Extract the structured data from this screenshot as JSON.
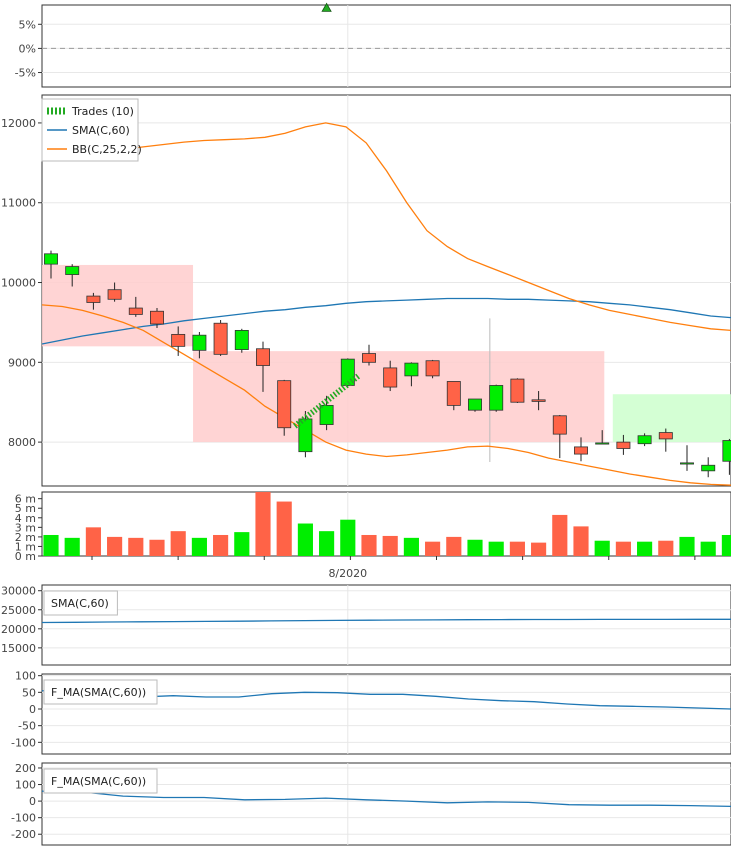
{
  "chart_data": [
    {
      "type": "line",
      "panel": "trade-returns",
      "y_ticks": [
        "5%",
        "0%",
        "-5%"
      ],
      "ylim": [
        -8,
        9
      ],
      "marker_index": 13,
      "marker_value": 8.5,
      "marker_color": "#22aa22"
    },
    {
      "type": "candlestick",
      "panel": "price",
      "y_ticks": [
        12000,
        11000,
        10000,
        9000,
        8000
      ],
      "ylim": [
        7450,
        12350
      ],
      "legend": {
        "placement": "top-left",
        "items": [
          {
            "label": "Trades (10)",
            "color": "#22aa22",
            "style": "hatched"
          },
          {
            "label": "SMA(C,60)",
            "color": "#1f77b4",
            "style": "line"
          },
          {
            "label": "BB(C,25,2,2)",
            "color": "#ff7f0e",
            "style": "line"
          }
        ]
      },
      "colors": {
        "up": "#00ee00",
        "down": "#ff6347",
        "sma": "#1f77b4",
        "bb": "#ff7f0e",
        "zone_loss": "#ffcccc",
        "zone_win": "#ccffcc"
      },
      "candles": [
        {
          "o": 10230,
          "h": 10400,
          "l": 10050,
          "c": 10360
        },
        {
          "o": 10100,
          "h": 10230,
          "l": 9950,
          "c": 10200
        },
        {
          "o": 9830,
          "h": 9870,
          "l": 9660,
          "c": 9750
        },
        {
          "o": 9910,
          "h": 10000,
          "l": 9760,
          "c": 9790
        },
        {
          "o": 9680,
          "h": 9820,
          "l": 9570,
          "c": 9600
        },
        {
          "o": 9640,
          "h": 9680,
          "l": 9430,
          "c": 9480
        },
        {
          "o": 9350,
          "h": 9450,
          "l": 9080,
          "c": 9200
        },
        {
          "o": 9150,
          "h": 9380,
          "l": 9050,
          "c": 9340
        },
        {
          "o": 9490,
          "h": 9530,
          "l": 9080,
          "c": 9100
        },
        {
          "o": 9160,
          "h": 9420,
          "l": 9120,
          "c": 9400
        },
        {
          "o": 9170,
          "h": 9260,
          "l": 8630,
          "c": 8960
        },
        {
          "o": 8770,
          "h": 8780,
          "l": 8080,
          "c": 8180
        },
        {
          "o": 7880,
          "h": 8390,
          "l": 7810,
          "c": 8290
        },
        {
          "o": 8220,
          "h": 8580,
          "l": 8150,
          "c": 8460
        },
        {
          "o": 8710,
          "h": 9050,
          "l": 8700,
          "c": 9040
        },
        {
          "o": 9110,
          "h": 9220,
          "l": 8960,
          "c": 9000
        },
        {
          "o": 8930,
          "h": 9020,
          "l": 8640,
          "c": 8690
        },
        {
          "o": 8830,
          "h": 9000,
          "l": 8700,
          "c": 8990
        },
        {
          "o": 9020,
          "h": 9030,
          "l": 8800,
          "c": 8830
        },
        {
          "o": 8760,
          "h": 8760,
          "l": 8400,
          "c": 8460
        },
        {
          "o": 8400,
          "h": 8540,
          "l": 8380,
          "c": 8540
        },
        {
          "o": 8400,
          "h": 8720,
          "l": 8380,
          "c": 8710
        },
        {
          "o": 8790,
          "h": 8800,
          "l": 8490,
          "c": 8500
        },
        {
          "o": 8530,
          "h": 8640,
          "l": 8400,
          "c": 8510
        },
        {
          "o": 8330,
          "h": 8340,
          "l": 7800,
          "c": 8100
        },
        {
          "o": 7940,
          "h": 8060,
          "l": 7760,
          "c": 7850
        },
        {
          "o": 7990,
          "h": 8150,
          "l": 7990,
          "c": 7990
        },
        {
          "o": 8000,
          "h": 8090,
          "l": 7840,
          "c": 7920
        },
        {
          "o": 7980,
          "h": 8110,
          "l": 7950,
          "c": 8080
        },
        {
          "o": 8120,
          "h": 8170,
          "l": 7880,
          "c": 8040
        },
        {
          "o": 7740,
          "h": 7960,
          "l": 7640,
          "c": 7740
        },
        {
          "o": 7640,
          "h": 7810,
          "l": 7560,
          "c": 7710
        },
        {
          "o": 7760,
          "h": 8040,
          "l": 7590,
          "c": 8020
        }
      ],
      "sma": [
        9230,
        9280,
        9330,
        9370,
        9410,
        9450,
        9480,
        9520,
        9550,
        9580,
        9610,
        9640,
        9660,
        9690,
        9710,
        9740,
        9760,
        9770,
        9780,
        9790,
        9800,
        9800,
        9800,
        9790,
        9790,
        9780,
        9770,
        9760,
        9740,
        9720,
        9690,
        9660,
        9620,
        9580,
        9560
      ],
      "bb_upper": [
        11750,
        11700,
        11650,
        11650,
        11670,
        11700,
        11730,
        11760,
        11780,
        11790,
        11800,
        11820,
        11870,
        11950,
        12000,
        11950,
        11750,
        11400,
        11000,
        10650,
        10450,
        10300,
        10200,
        10100,
        10000,
        9900,
        9800,
        9720,
        9650,
        9600,
        9550,
        9500,
        9460,
        9420,
        9400
      ],
      "bb_lower": [
        9720,
        9700,
        9650,
        9580,
        9500,
        9400,
        9250,
        9100,
        8950,
        8800,
        8650,
        8450,
        8300,
        8150,
        8000,
        7900,
        7850,
        7820,
        7840,
        7870,
        7900,
        7940,
        7950,
        7920,
        7870,
        7800,
        7750,
        7700,
        7650,
        7600,
        7560,
        7520,
        7490,
        7470,
        7460
      ],
      "zones": [
        {
          "start": -0.5,
          "end": 6.7,
          "low": 9200,
          "high": 10220,
          "kind": "loss"
        },
        {
          "start": 6.7,
          "end": 26.1,
          "low": 8000,
          "high": 9140,
          "kind": "loss"
        },
        {
          "start": 26.5,
          "end": 33,
          "low": 8000,
          "high": 8600,
          "kind": "win"
        }
      ],
      "trade_line": {
        "x1": 11.5,
        "y1": 8200,
        "x2": 14.5,
        "y2": 8830
      }
    },
    {
      "type": "bar",
      "panel": "volume",
      "y_ticks": [
        "6 m",
        "5 m",
        "4 m",
        "3 m",
        "2 m",
        "1 m",
        "0 m"
      ],
      "ylim": [
        0,
        6.7
      ],
      "x_tick_label": "8/2020",
      "x_tick_index": 14,
      "values": [
        2.2,
        1.9,
        3.0,
        2.0,
        1.9,
        1.7,
        2.6,
        1.9,
        2.2,
        2.5,
        6.8,
        5.7,
        3.4,
        2.6,
        3.8,
        2.2,
        2.1,
        1.9,
        1.5,
        2.0,
        1.7,
        1.5,
        1.5,
        1.4,
        4.3,
        3.1,
        1.6,
        1.5,
        1.5,
        1.6,
        2.0,
        1.5,
        2.2
      ]
    },
    {
      "type": "line",
      "panel": "indicator-1",
      "label": "SMA(C,60)",
      "y_ticks": [
        30000,
        25000,
        20000,
        15000
      ],
      "ylim": [
        10500,
        31500
      ],
      "values": [
        21650,
        21700,
        21780,
        21850,
        21900,
        21950,
        22000,
        22080,
        22150,
        22200,
        22250,
        22300,
        22350,
        22400,
        22420,
        22440,
        22450,
        22460,
        22470,
        22480,
        22490,
        22500
      ]
    },
    {
      "type": "line",
      "panel": "indicator-2",
      "label": "F_MA(SMA(C,60))",
      "y_ticks": [
        100,
        50,
        0,
        -50,
        -100
      ],
      "ylim": [
        -135,
        105
      ],
      "values": [
        55,
        50,
        42,
        36,
        40,
        36,
        36,
        46,
        50,
        49,
        44,
        44,
        38,
        30,
        25,
        22,
        15,
        10,
        8,
        6,
        3,
        0
      ]
    },
    {
      "type": "line",
      "panel": "indicator-3",
      "label": "F_MA(SMA(C,60))",
      "y_ticks": [
        200,
        100,
        0,
        -100,
        -200
      ],
      "ylim": [
        -265,
        230
      ],
      "values": [
        60,
        55,
        30,
        22,
        22,
        8,
        10,
        18,
        8,
        0,
        -10,
        -5,
        -8,
        -22,
        -25,
        -25,
        -27,
        -32
      ]
    }
  ]
}
